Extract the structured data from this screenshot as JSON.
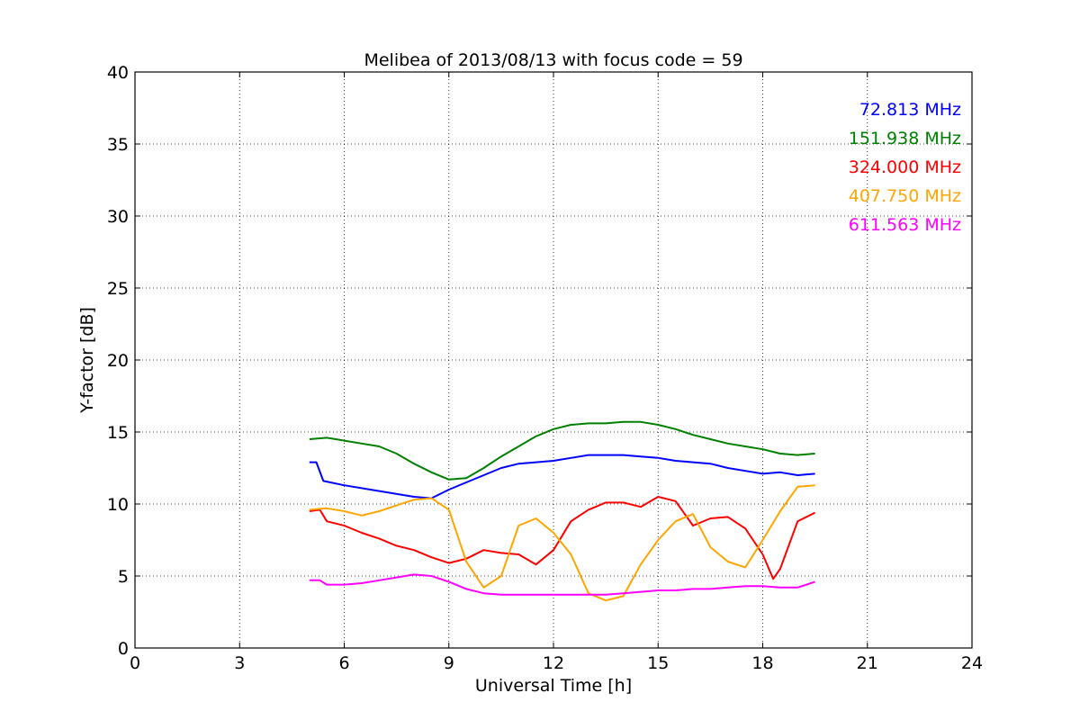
{
  "chart_data": {
    "type": "line",
    "title": "Melibea of 2013/08/13 with focus code = 59",
    "xlabel": "Universal Time [h]",
    "ylabel": "Y-factor [dB]",
    "xlim": [
      0,
      24
    ],
    "ylim": [
      0,
      40
    ],
    "xticks": [
      0,
      3,
      6,
      9,
      12,
      15,
      18,
      21,
      24
    ],
    "yticks": [
      0,
      5,
      10,
      15,
      20,
      25,
      30,
      35,
      40
    ],
    "grid": true,
    "legend_position": "top-right",
    "series": [
      {
        "name": "72.813 MHz",
        "color": "#0000ff",
        "x": [
          5.0,
          5.2,
          5.4,
          6.0,
          7.0,
          8.0,
          8.5,
          9.0,
          9.5,
          10.0,
          10.5,
          11.0,
          11.5,
          12.0,
          12.5,
          13.0,
          13.5,
          14.0,
          14.5,
          15.0,
          15.5,
          16.0,
          16.5,
          17.0,
          17.5,
          18.0,
          18.5,
          19.0,
          19.5
        ],
        "values": [
          12.9,
          12.9,
          11.6,
          11.3,
          10.9,
          10.5,
          10.4,
          11.0,
          11.5,
          12.0,
          12.5,
          12.8,
          12.9,
          13.0,
          13.2,
          13.4,
          13.4,
          13.4,
          13.3,
          13.2,
          13.0,
          12.9,
          12.8,
          12.5,
          12.3,
          12.1,
          12.2,
          12.0,
          12.1
        ]
      },
      {
        "name": "151.938 MHz",
        "color": "#008000",
        "x": [
          5.0,
          5.5,
          6.0,
          6.5,
          7.0,
          7.5,
          8.0,
          8.5,
          9.0,
          9.5,
          10.0,
          10.5,
          11.0,
          11.5,
          12.0,
          12.5,
          13.0,
          13.5,
          14.0,
          14.5,
          15.0,
          15.5,
          16.0,
          16.5,
          17.0,
          17.5,
          18.0,
          18.5,
          19.0,
          19.5
        ],
        "values": [
          14.5,
          14.6,
          14.4,
          14.2,
          14.0,
          13.5,
          12.8,
          12.2,
          11.7,
          11.8,
          12.5,
          13.3,
          14.0,
          14.7,
          15.2,
          15.5,
          15.6,
          15.6,
          15.7,
          15.7,
          15.5,
          15.2,
          14.8,
          14.5,
          14.2,
          14.0,
          13.8,
          13.5,
          13.4,
          13.5
        ]
      },
      {
        "name": "324.000 MHz",
        "color": "#ff0000",
        "x": [
          5.0,
          5.3,
          5.5,
          6.0,
          6.5,
          7.0,
          7.5,
          8.0,
          8.5,
          9.0,
          9.5,
          10.0,
          10.5,
          11.0,
          11.5,
          12.0,
          12.5,
          13.0,
          13.5,
          14.0,
          14.5,
          15.0,
          15.5,
          16.0,
          16.5,
          17.0,
          17.5,
          18.0,
          18.3,
          18.5,
          19.0,
          19.5
        ],
        "values": [
          9.5,
          9.6,
          8.8,
          8.5,
          8.0,
          7.6,
          7.1,
          6.8,
          6.3,
          5.9,
          6.2,
          6.8,
          6.6,
          6.5,
          5.8,
          6.8,
          8.8,
          9.6,
          10.1,
          10.1,
          9.8,
          10.5,
          10.2,
          8.5,
          9.0,
          9.1,
          8.3,
          6.5,
          4.8,
          5.5,
          8.8,
          9.4
        ]
      },
      {
        "name": "407.750 MHz",
        "color": "#ffa500",
        "x": [
          5.0,
          5.5,
          6.0,
          6.5,
          7.0,
          7.5,
          8.0,
          8.5,
          9.0,
          9.5,
          10.0,
          10.5,
          11.0,
          11.5,
          12.0,
          12.5,
          13.0,
          13.5,
          14.0,
          14.5,
          15.0,
          15.5,
          16.0,
          16.5,
          17.0,
          17.5,
          18.0,
          18.5,
          19.0,
          19.5
        ],
        "values": [
          9.6,
          9.7,
          9.5,
          9.2,
          9.5,
          9.9,
          10.3,
          10.4,
          9.6,
          6.0,
          4.2,
          5.0,
          8.5,
          9.0,
          8.0,
          6.5,
          3.8,
          3.3,
          3.6,
          5.8,
          7.5,
          8.8,
          9.3,
          7.0,
          6.0,
          5.6,
          7.5,
          9.5,
          11.2,
          11.3
        ]
      },
      {
        "name": "611.563 MHz",
        "color": "#ff00ff",
        "x": [
          5.0,
          5.3,
          5.5,
          6.0,
          6.5,
          7.0,
          7.5,
          8.0,
          8.5,
          9.0,
          9.5,
          10.0,
          10.5,
          11.0,
          11.5,
          12.0,
          12.5,
          13.0,
          13.5,
          14.0,
          14.5,
          15.0,
          15.5,
          16.0,
          16.5,
          17.0,
          17.5,
          18.0,
          18.5,
          19.0,
          19.5
        ],
        "values": [
          4.7,
          4.7,
          4.4,
          4.4,
          4.5,
          4.7,
          4.9,
          5.1,
          5.0,
          4.6,
          4.1,
          3.8,
          3.7,
          3.7,
          3.7,
          3.7,
          3.7,
          3.7,
          3.7,
          3.8,
          3.9,
          4.0,
          4.0,
          4.1,
          4.1,
          4.2,
          4.3,
          4.3,
          4.2,
          4.2,
          4.6
        ]
      }
    ]
  }
}
